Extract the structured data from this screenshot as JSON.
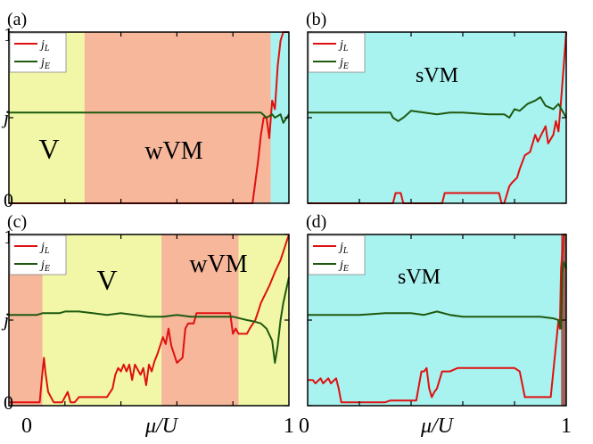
{
  "figure": {
    "colors": {
      "yellow": "#f1f7a6",
      "salmon": "#f6b79b",
      "cyan": "#a8f2ef",
      "brown": "#a0625a",
      "jL": "#e01010",
      "jE": "#1f5a10"
    },
    "shared_ticks": {
      "y_left": [
        "1",
        "j",
        "0"
      ],
      "x_bottom": [
        "0",
        "μ/U",
        "1"
      ]
    }
  },
  "chart_data": [
    {
      "type": "line",
      "panel": "(a)",
      "xlim": [
        0,
        1
      ],
      "ylim": [
        0,
        1
      ],
      "y_ticks": [
        {
          "label": "0",
          "value": 0
        },
        {
          "label": "j",
          "value": 0.5
        },
        {
          "label": "1",
          "value": 1
        }
      ],
      "regions": [
        {
          "label": "V",
          "from": 0,
          "to": 0.27,
          "color": "yellow"
        },
        {
          "label": "wVM",
          "from": 0.27,
          "to": 0.935,
          "color": "salmon"
        },
        {
          "label": "",
          "from": 0.935,
          "to": 1.0,
          "color": "cyan"
        }
      ],
      "series": [
        {
          "name": "j_L",
          "color": "jL",
          "x": [
            0,
            0.87,
            0.89,
            0.9,
            0.91,
            0.92,
            0.93,
            0.94,
            0.95,
            0.96,
            0.97,
            0.98,
            1.0
          ],
          "y": [
            0,
            0,
            0.25,
            0.4,
            0.5,
            0.5,
            0.38,
            0.6,
            0.55,
            0.8,
            0.95,
            1.0,
            1.0
          ]
        },
        {
          "name": "j_E",
          "color": "jE",
          "x": [
            0,
            0.88,
            0.9,
            0.92,
            0.94,
            0.95,
            0.97,
            0.98,
            1.0
          ],
          "y": [
            0.53,
            0.53,
            0.53,
            0.5,
            0.52,
            0.5,
            0.52,
            0.47,
            0.52
          ]
        }
      ]
    },
    {
      "type": "line",
      "panel": "(b)",
      "xlim": [
        0,
        1
      ],
      "ylim": [
        0,
        1
      ],
      "y_ticks": [
        {
          "label": "0",
          "value": 0
        },
        {
          "label": "j",
          "value": 0.5
        },
        {
          "label": "1",
          "value": 1
        }
      ],
      "regions": [
        {
          "label": "sVM",
          "from": 0,
          "to": 1.0,
          "color": "cyan"
        }
      ],
      "series": [
        {
          "name": "j_L",
          "color": "jL",
          "x": [
            0,
            0.33,
            0.34,
            0.36,
            0.37,
            0.52,
            0.53,
            0.55,
            0.56,
            0.74,
            0.75,
            0.76,
            0.78,
            0.79,
            0.81,
            0.82,
            0.84,
            0.86,
            0.88,
            0.89,
            0.92,
            0.93,
            0.95,
            0.96,
            0.97,
            0.98,
            1.0
          ],
          "y": [
            0,
            0,
            0.06,
            0.06,
            0,
            0,
            0.06,
            0.06,
            0.06,
            0.06,
            0,
            0,
            0.1,
            0.12,
            0.15,
            0.2,
            0.28,
            0.3,
            0.4,
            0.36,
            0.45,
            0.35,
            0.4,
            0.48,
            0.42,
            0.6,
            1.0
          ]
        },
        {
          "name": "j_E",
          "color": "jE",
          "x": [
            0,
            0.32,
            0.33,
            0.35,
            0.37,
            0.4,
            0.45,
            0.5,
            0.55,
            0.6,
            0.7,
            0.76,
            0.78,
            0.8,
            0.82,
            0.85,
            0.88,
            0.9,
            0.92,
            0.95,
            0.97,
            1.0
          ],
          "y": [
            0.53,
            0.53,
            0.5,
            0.48,
            0.5,
            0.54,
            0.53,
            0.52,
            0.53,
            0.53,
            0.52,
            0.52,
            0.5,
            0.55,
            0.54,
            0.58,
            0.6,
            0.62,
            0.57,
            0.55,
            0.58,
            0.5
          ]
        }
      ]
    },
    {
      "type": "line",
      "panel": "(c)",
      "xlim": [
        0,
        1
      ],
      "ylim": [
        0,
        1
      ],
      "y_ticks": [
        {
          "label": "0",
          "value": 0
        },
        {
          "label": "j",
          "value": 0.5
        },
        {
          "label": "1",
          "value": 1
        }
      ],
      "regions": [
        {
          "label": "",
          "from": 0,
          "to": 0.12,
          "color": "salmon"
        },
        {
          "label": "V",
          "from": 0.12,
          "to": 0.545,
          "color": "yellow"
        },
        {
          "label": "wVM",
          "from": 0.545,
          "to": 0.82,
          "color": "salmon"
        },
        {
          "label": "",
          "from": 0.82,
          "to": 1.0,
          "color": "yellow"
        }
      ],
      "series": [
        {
          "name": "j_L",
          "color": "jL",
          "x": [
            0,
            0.11,
            0.12,
            0.125,
            0.13,
            0.14,
            0.16,
            0.19,
            0.21,
            0.22,
            0.235,
            0.25,
            0.27,
            0.3,
            0.33,
            0.35,
            0.37,
            0.38,
            0.39,
            0.4,
            0.41,
            0.42,
            0.43,
            0.44,
            0.45,
            0.47,
            0.48,
            0.49,
            0.5,
            0.51,
            0.52,
            0.53,
            0.54,
            0.55,
            0.56,
            0.57,
            0.58,
            0.59,
            0.6,
            0.62,
            0.63,
            0.64,
            0.66,
            0.67,
            0.7,
            0.75,
            0.79,
            0.8,
            0.81,
            0.82,
            0.85,
            0.86,
            0.88,
            0.89,
            0.9,
            0.93,
            0.95,
            0.97,
            1.0
          ],
          "y": [
            0.02,
            0.02,
            0.2,
            0.28,
            0.2,
            0.08,
            0.02,
            0.02,
            0.08,
            0.02,
            0.02,
            0.05,
            0.05,
            0.05,
            0.05,
            0.05,
            0.1,
            0.18,
            0.22,
            0.2,
            0.24,
            0.2,
            0.24,
            0.15,
            0.24,
            0.18,
            0.22,
            0.12,
            0.24,
            0.2,
            0.26,
            0.3,
            0.35,
            0.4,
            0.36,
            0.45,
            0.35,
            0.3,
            0.25,
            0.28,
            0.45,
            0.48,
            0.48,
            0.54,
            0.54,
            0.54,
            0.54,
            0.42,
            0.45,
            0.42,
            0.42,
            0.45,
            0.5,
            0.55,
            0.6,
            0.7,
            0.78,
            0.85,
            1.0
          ]
        },
        {
          "name": "j_E",
          "color": "jE",
          "x": [
            0,
            0.1,
            0.12,
            0.18,
            0.2,
            0.25,
            0.3,
            0.35,
            0.4,
            0.45,
            0.5,
            0.55,
            0.6,
            0.65,
            0.7,
            0.75,
            0.8,
            0.85,
            0.88,
            0.9,
            0.92,
            0.94,
            0.95,
            0.96,
            0.97,
            0.98,
            1.0
          ],
          "y": [
            0.53,
            0.53,
            0.54,
            0.54,
            0.55,
            0.55,
            0.54,
            0.53,
            0.54,
            0.53,
            0.52,
            0.52,
            0.53,
            0.52,
            0.52,
            0.52,
            0.52,
            0.5,
            0.49,
            0.48,
            0.45,
            0.38,
            0.25,
            0.35,
            0.5,
            0.6,
            0.75
          ]
        }
      ]
    },
    {
      "type": "line",
      "panel": "(d)",
      "xlim": [
        0,
        1
      ],
      "ylim": [
        0,
        1
      ],
      "y_ticks": [
        {
          "label": "0",
          "value": 0
        },
        {
          "label": "j",
          "value": 0.5
        },
        {
          "label": "1",
          "value": 1
        }
      ],
      "regions": [
        {
          "label": "sVM",
          "from": 0,
          "to": 0.98,
          "color": "cyan"
        },
        {
          "label": "",
          "from": 0.98,
          "to": 1.0,
          "color": "brown"
        }
      ],
      "series": [
        {
          "name": "j_L",
          "color": "jL",
          "x": [
            0,
            0.02,
            0.03,
            0.05,
            0.06,
            0.08,
            0.09,
            0.11,
            0.12,
            0.13,
            0.15,
            0.3,
            0.32,
            0.4,
            0.42,
            0.44,
            0.45,
            0.46,
            0.47,
            0.48,
            0.49,
            0.5,
            0.52,
            0.55,
            0.58,
            0.62,
            0.8,
            0.82,
            0.84,
            0.87,
            0.9,
            0.92,
            0.94,
            0.97,
            0.975,
            0.98,
            0.99,
            1.0
          ],
          "y": [
            0.15,
            0.15,
            0.13,
            0.16,
            0.13,
            0.16,
            0.13,
            0.16,
            0.1,
            0.02,
            0.02,
            0.02,
            0.03,
            0.03,
            0.03,
            0.2,
            0.2,
            0.22,
            0.1,
            0.05,
            0.08,
            0.1,
            0.2,
            0.2,
            0.22,
            0.22,
            0.22,
            0.2,
            0.05,
            0.05,
            0.05,
            0.05,
            0.05,
            0.5,
            0.45,
            0.8,
            1.0,
            1.0
          ]
        },
        {
          "name": "j_E",
          "color": "jE",
          "x": [
            0,
            0.2,
            0.3,
            0.4,
            0.45,
            0.5,
            0.55,
            0.6,
            0.7,
            0.8,
            0.9,
            0.95,
            0.97,
            0.98,
            0.985,
            0.99,
            1.0
          ],
          "y": [
            0.53,
            0.53,
            0.54,
            0.54,
            0.53,
            0.55,
            0.53,
            0.52,
            0.52,
            0.52,
            0.52,
            0.51,
            0.5,
            0.45,
            0.78,
            0.84,
            0.8
          ]
        }
      ]
    }
  ]
}
